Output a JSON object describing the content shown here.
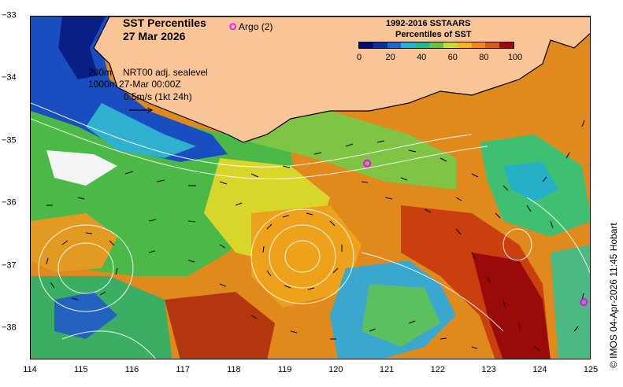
{
  "map": {
    "title_line1": "SST Percentiles",
    "title_line2": "27 Mar 2026",
    "argo_symbol": "O",
    "argo_label": "Argo (2)",
    "depth_200": "200m",
    "depth_1000": "1000m",
    "sealevel_label": "NRT00 adj. sealevel",
    "sealevel_time": "27-Mar 00:00Z",
    "vector_scale": "0.5m/s (1kt 24h)",
    "credit": "© IMOS 04-Apr-2026 11:45 Hobart",
    "lon_ticks": [
      "114",
      "115",
      "116",
      "117",
      "118",
      "119",
      "120",
      "121",
      "122",
      "123",
      "124",
      "125"
    ],
    "lat_ticks": [
      "-33",
      "-34",
      "-35",
      "-36",
      "-37",
      "-38"
    ],
    "lon_range": [
      114,
      125
    ],
    "lat_range": [
      -38.5,
      -33
    ],
    "argo_floats": [
      {
        "lon": 120.6,
        "lat": -35.35
      },
      {
        "lon": 124.85,
        "lat": -37.57
      }
    ]
  },
  "colorbar": {
    "title_line1": "1992-2016 SSTAARS",
    "title_line2": "Percentiles of SST",
    "labels": [
      "0",
      "20",
      "40",
      "60",
      "80",
      "100"
    ],
    "colors": [
      "#000c6e",
      "#0c2f9e",
      "#1f68c8",
      "#25b0d8",
      "#1fb88f",
      "#6cc23a",
      "#c8dc2a",
      "#f2b81d",
      "#ef8a1a",
      "#d45f12",
      "#9b0a0a"
    ]
  },
  "colors": {
    "land": "#f9c597",
    "coastline": "#000000",
    "argo": "#ff00ff",
    "contours": "#ffffff"
  }
}
